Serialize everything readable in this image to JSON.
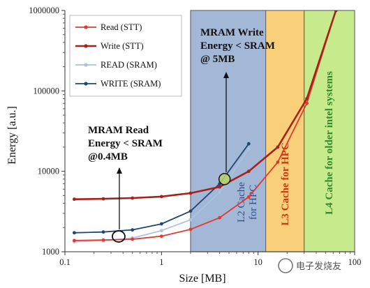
{
  "chart_data": {
    "type": "line",
    "xlabel": "Size [MB]",
    "ylabel": "Energy [a.u.]",
    "x_scale": "log",
    "y_scale": "log",
    "xlim": [
      0.1,
      100
    ],
    "ylim": [
      1000,
      1000000
    ],
    "x_ticks": [
      "0.1",
      "1",
      "10",
      "100"
    ],
    "y_ticks": [
      "1000",
      "10000",
      "100000",
      "1000000"
    ],
    "grid": false,
    "legend_position": "top-left",
    "series": [
      {
        "name": "Read (STT)",
        "color": "#e0392f",
        "marker": "circle",
        "x": [
          0.125,
          0.25,
          0.5,
          1,
          2,
          4,
          8,
          16,
          32,
          64
        ],
        "y": [
          1380,
          1400,
          1430,
          1560,
          1900,
          2650,
          4800,
          13000,
          70000,
          1000000
        ]
      },
      {
        "name": "Write (STT)",
        "color": "#a8201a",
        "marker": "circle",
        "x": [
          0.125,
          0.25,
          0.5,
          1,
          2,
          4,
          8,
          16,
          32,
          64
        ],
        "y": [
          4500,
          4550,
          4650,
          4850,
          5350,
          6400,
          10000,
          20000,
          80000,
          1000000
        ]
      },
      {
        "name": "READ (SRAM)",
        "color": "#a9c3e0",
        "marker": "circle",
        "x": [
          0.125,
          0.25,
          0.5,
          1,
          2,
          4,
          8
        ],
        "y": [
          1330,
          1370,
          1480,
          1830,
          2500,
          5500,
          19000
        ]
      },
      {
        "name": "WRITE (SRAM)",
        "color": "#22466e",
        "marker": "circle",
        "x": [
          0.125,
          0.25,
          0.5,
          1,
          2,
          4,
          8
        ],
        "y": [
          1720,
          1760,
          1870,
          2220,
          3200,
          7000,
          22000
        ]
      }
    ],
    "regions": [
      {
        "label": "L2 Cache for HPC",
        "x_start": 2,
        "x_end": 12,
        "fill": "#a3b7d6",
        "text_color": "#2d4f86"
      },
      {
        "label": "L3 Cache for HPC",
        "x_start": 12,
        "x_end": 30,
        "fill": "#f9cf7a",
        "text_color": "#c43d0f"
      },
      {
        "label": "L4 Cache for older intel systems",
        "x_start": 30,
        "x_end": 100,
        "fill": "#c6ea8c",
        "text_color": "#2e8b2e"
      }
    ],
    "annotations": [
      {
        "lines": [
          "MRAM Read",
          "Energy < SRAM",
          "@0.4MB"
        ],
        "x": 0.36,
        "y": 1550
      },
      {
        "lines": [
          "MRAM Write",
          "Energy < SRAM",
          "@ 5MB"
        ],
        "x": 4.5,
        "y": 8000
      }
    ]
  },
  "watermark": "电子发烧友"
}
